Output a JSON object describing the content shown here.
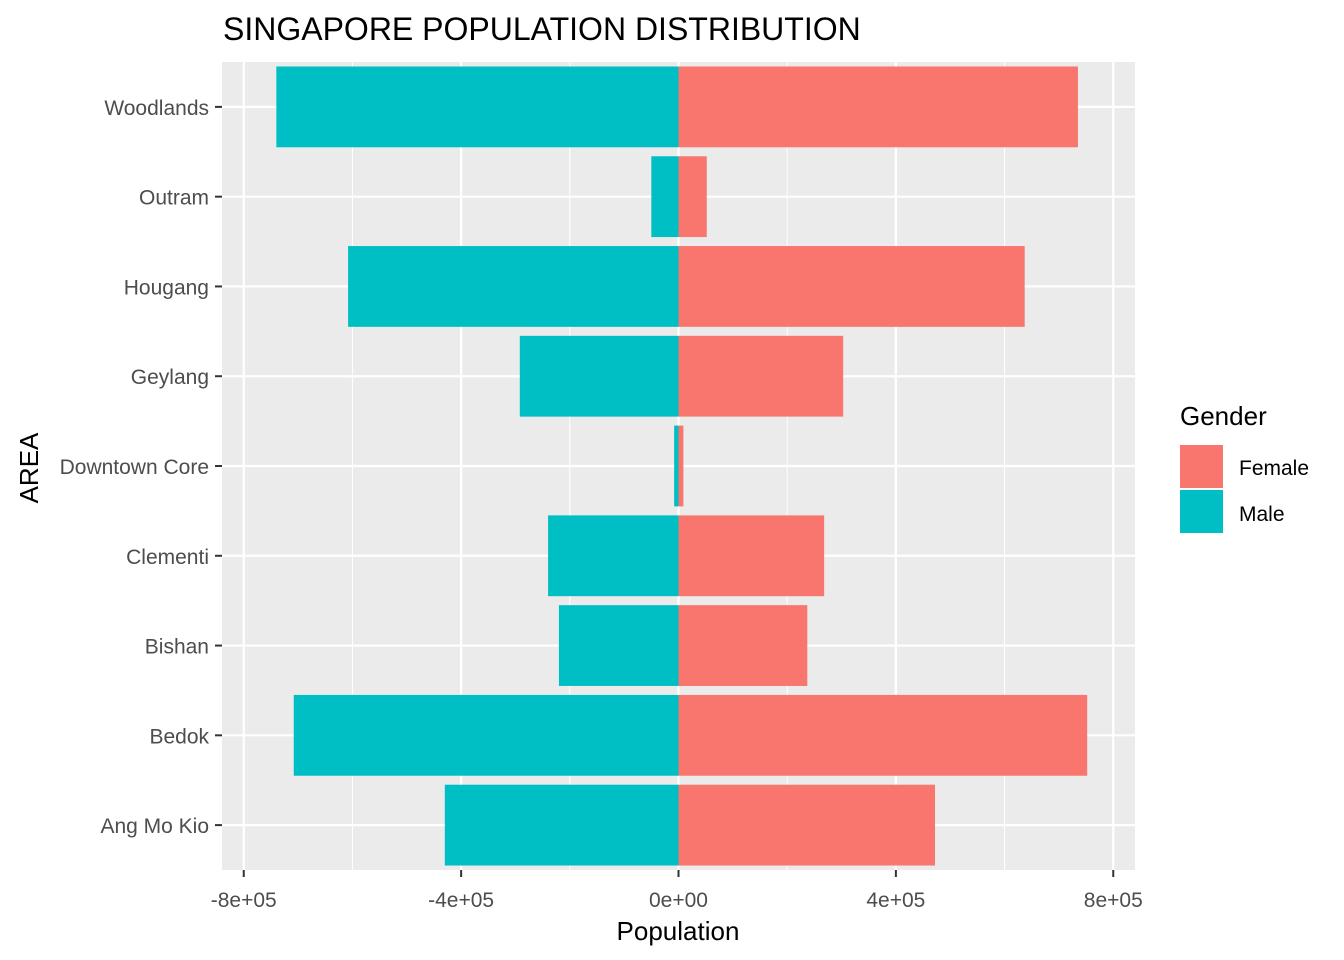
{
  "chart_data": {
    "type": "bar",
    "orientation": "horizontal",
    "title": "SINGAPORE POPULATION DISTRIBUTION",
    "xlabel": "Population",
    "ylabel": "AREA",
    "xlim": [
      -800000,
      800000
    ],
    "xticks": [
      -800000,
      -400000,
      0,
      400000,
      800000
    ],
    "xtick_labels": [
      "-8e+05",
      "-4e+05",
      "0e+00",
      "4e+05",
      "8e+05"
    ],
    "categories": [
      "Ang Mo Kio",
      "Bedok",
      "Bishan",
      "Clementi",
      "Downtown Core",
      "Geylang",
      "Hougang",
      "Outram",
      "Woodlands"
    ],
    "series": [
      {
        "name": "Female",
        "color": "#F8766D",
        "values": [
          472000,
          752000,
          237000,
          268000,
          9000,
          303000,
          637000,
          52000,
          735000
        ]
      },
      {
        "name": "Male",
        "color": "#00BFC4",
        "values": [
          -430000,
          -708000,
          -220000,
          -240000,
          -8000,
          -292000,
          -608000,
          -50000,
          -740000
        ]
      }
    ],
    "legend": {
      "title": "Gender",
      "position": "right"
    },
    "grid": true,
    "panel_background": "#EBEBEB"
  }
}
